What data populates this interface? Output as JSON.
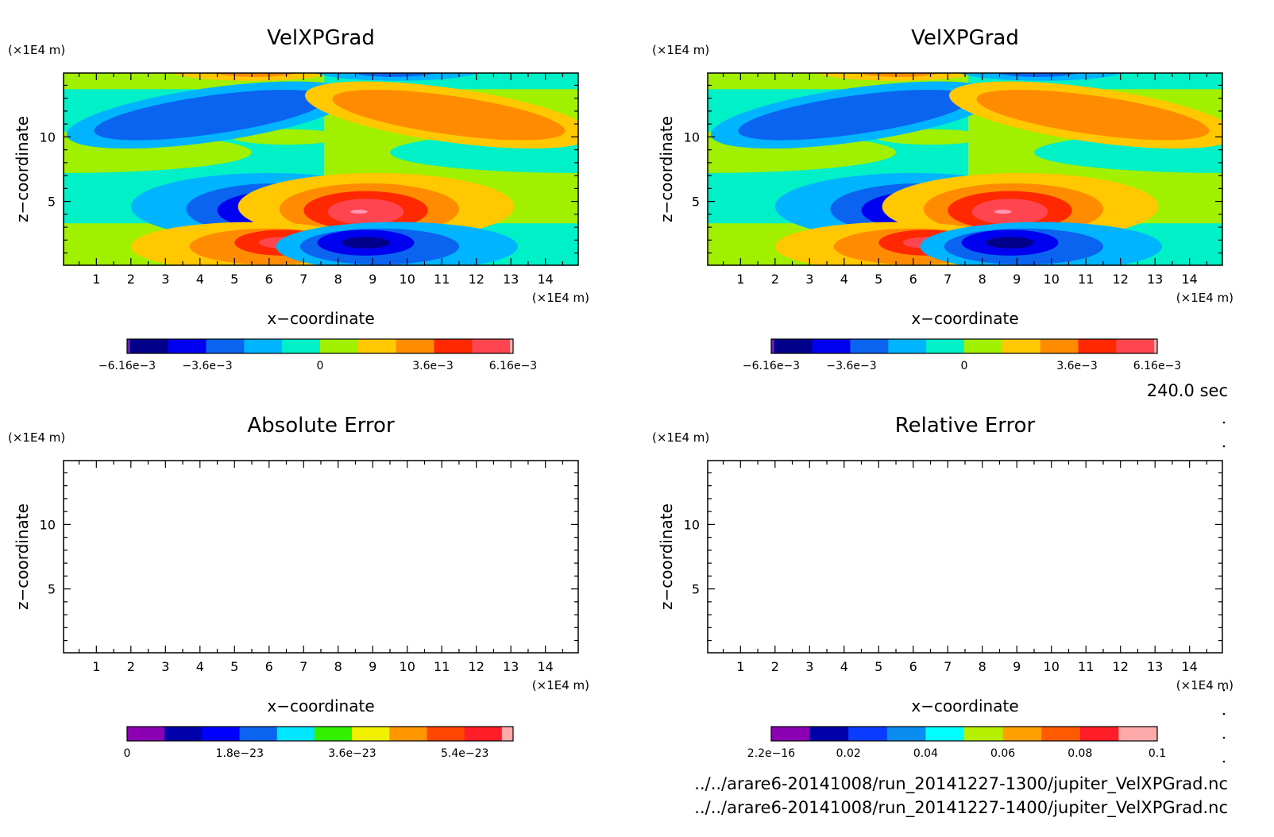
{
  "colors": {
    "neg4": "#00008b",
    "neg3": "#0000f0",
    "neg2": "#0a64f0",
    "neg1": "#00b4ff",
    "zero_neg": "#00f0c8",
    "zero_pos": "#a0f000",
    "pos1": "#ffc800",
    "pos2": "#ff8c00",
    "pos3": "#ff2800",
    "pos4": "#ff4650",
    "peak_pos": "#ff96b4",
    "peak_neg": "#b464dc",
    "frame": "#000000",
    "background": "#ffffff"
  },
  "panels": [
    {
      "title": "VelXPGrad",
      "xlabel": "x−coordinate",
      "ylabel": "z−coordinate",
      "xunit": "(×1E4 m)",
      "yunit": "(×1E4 m)",
      "filled": true
    },
    {
      "title": "VelXPGrad",
      "xlabel": "x−coordinate",
      "ylabel": "z−coordinate",
      "xunit": "(×1E4 m)",
      "yunit": "(×1E4 m)",
      "filled": true
    },
    {
      "title": "Absolute Error",
      "xlabel": "x−coordinate",
      "ylabel": "z−coordinate",
      "xunit": "(×1E4 m)",
      "yunit": "(×1E4 m)",
      "filled": false
    },
    {
      "title": "Relative Error",
      "xlabel": "x−coordinate",
      "ylabel": "z−coordinate",
      "xunit": "(×1E4 m)",
      "yunit": "(×1E4 m)",
      "filled": false
    }
  ],
  "colorbars": [
    {
      "ticks": [
        {
          "label": "−6.16e−3",
          "pos": 0.0
        },
        {
          "label": "−3.6e−3",
          "pos": 0.2078
        },
        {
          "label": "0",
          "pos": 0.5
        },
        {
          "label": "3.6e−3",
          "pos": 0.7922
        },
        {
          "label": "6.16e−3",
          "pos": 1.0
        }
      ],
      "colors": [
        "#6a1fb4",
        "#00008b",
        "#0000f0",
        "#0a64f0",
        "#00b4ff",
        "#00f0c8",
        "#a0f000",
        "#ffc800",
        "#ff8c00",
        "#ff2800",
        "#ff4650",
        "#ffb4b4"
      ],
      "weights": [
        0.08,
        1,
        1,
        1,
        1,
        1,
        1,
        1,
        1,
        1,
        1,
        0.08
      ]
    },
    {
      "ticks": [
        {
          "label": "−6.16e−3",
          "pos": 0.0
        },
        {
          "label": "−3.6e−3",
          "pos": 0.2078
        },
        {
          "label": "0",
          "pos": 0.5
        },
        {
          "label": "3.6e−3",
          "pos": 0.7922
        },
        {
          "label": "6.16e−3",
          "pos": 1.0
        }
      ],
      "colors": [
        "#6a1fb4",
        "#00008b",
        "#0000f0",
        "#0a64f0",
        "#00b4ff",
        "#00f0c8",
        "#a0f000",
        "#ffc800",
        "#ff8c00",
        "#ff2800",
        "#ff4650",
        "#ffb4b4"
      ],
      "weights": [
        0.08,
        1,
        1,
        1,
        1,
        1,
        1,
        1,
        1,
        1,
        1,
        0.08
      ]
    },
    {
      "ticks": [
        {
          "label": "0",
          "pos": 0.0
        },
        {
          "label": "1.8e−23",
          "pos": 0.2917
        },
        {
          "label": "3.6e−23",
          "pos": 0.5833
        },
        {
          "label": "5.4e−23",
          "pos": 0.875
        }
      ],
      "colors": [
        "#8c00b4",
        "#0000aa",
        "#0000ff",
        "#0a64f0",
        "#00e6ff",
        "#32f000",
        "#f0f000",
        "#ff9600",
        "#ff4600",
        "#ff1e28",
        "#ffaaaa"
      ],
      "weights": [
        1,
        1,
        1,
        1,
        1,
        1,
        1,
        1,
        1,
        1,
        0.3
      ]
    },
    {
      "ticks": [
        {
          "label": "2.2e−16",
          "pos": 0.0
        },
        {
          "label": "0.02",
          "pos": 0.2
        },
        {
          "label": "0.04",
          "pos": 0.4
        },
        {
          "label": "0.06",
          "pos": 0.6
        },
        {
          "label": "0.08",
          "pos": 0.8
        },
        {
          "label": "0.1",
          "pos": 1.0
        }
      ],
      "colors": [
        "#8c00b4",
        "#0000aa",
        "#0a3cff",
        "#0a8cf0",
        "#00ffff",
        "#b4f000",
        "#ffa000",
        "#ff5a00",
        "#ff1e28",
        "#ffaaaa"
      ],
      "weights": [
        1,
        1,
        1,
        1,
        1,
        1,
        1,
        1,
        1,
        1
      ]
    }
  ],
  "chart_data": [
    {
      "type": "heatmap",
      "title": "VelXPGrad",
      "xlabel": "x−coordinate",
      "ylabel": "z−coordinate",
      "xunit": "(×1E4 m)",
      "yunit": "(×1E4 m)",
      "xlim": [
        0.05,
        14.95
      ],
      "ylim": [
        0.05,
        14.95
      ],
      "xticks": [
        1,
        2,
        3,
        4,
        5,
        6,
        7,
        8,
        9,
        10,
        11,
        12,
        13,
        14
      ],
      "yticks": [
        5,
        10
      ],
      "color_levels": [
        -0.00616,
        0.00616
      ],
      "features": [
        {
          "sign": -1,
          "level": 4,
          "x": 6.3,
          "z": 4.2,
          "note": "negative core"
        },
        {
          "sign": 1,
          "level": 4,
          "x": 8.6,
          "z": 4.2,
          "note": "positive core"
        },
        {
          "sign": 1,
          "level": 3,
          "x": 6.4,
          "z": 1.8
        },
        {
          "sign": -1,
          "level": 3,
          "x": 8.8,
          "z": 1.8
        },
        {
          "sign": -1,
          "level": 2,
          "x": 4.0,
          "z": 12.0
        },
        {
          "sign": 1,
          "level": 2,
          "x": 11.2,
          "z": 12.0
        }
      ]
    },
    {
      "type": "heatmap",
      "title": "VelXPGrad",
      "xlabel": "x−coordinate",
      "ylabel": "z−coordinate",
      "xunit": "(×1E4 m)",
      "yunit": "(×1E4 m)",
      "xlim": [
        0.05,
        14.95
      ],
      "ylim": [
        0.05,
        14.95
      ],
      "xticks": [
        1,
        2,
        3,
        4,
        5,
        6,
        7,
        8,
        9,
        10,
        11,
        12,
        13,
        14
      ],
      "yticks": [
        5,
        10
      ],
      "color_levels": [
        -0.00616,
        0.00616
      ],
      "features": [
        {
          "sign": -1,
          "level": 4,
          "x": 6.3,
          "z": 4.2
        },
        {
          "sign": 1,
          "level": 4,
          "x": 8.6,
          "z": 4.2
        },
        {
          "sign": 1,
          "level": 3,
          "x": 6.4,
          "z": 1.8
        },
        {
          "sign": -1,
          "level": 3,
          "x": 8.8,
          "z": 1.8
        },
        {
          "sign": -1,
          "level": 2,
          "x": 4.0,
          "z": 12.0
        },
        {
          "sign": 1,
          "level": 2,
          "x": 11.2,
          "z": 12.0
        }
      ]
    },
    {
      "type": "heatmap",
      "title": "Absolute Error",
      "xlabel": "x−coordinate",
      "ylabel": "z−coordinate",
      "xunit": "(×1E4 m)",
      "yunit": "(×1E4 m)",
      "xlim": [
        0.05,
        14.95
      ],
      "ylim": [
        0.05,
        14.95
      ],
      "xticks": [
        1,
        2,
        3,
        4,
        5,
        6,
        7,
        8,
        9,
        10,
        11,
        12,
        13,
        14
      ],
      "yticks": [
        5,
        10
      ],
      "color_levels": [
        0,
        6e-23
      ],
      "values": "blank"
    },
    {
      "type": "heatmap",
      "title": "Relative Error",
      "xlabel": "x−coordinate",
      "ylabel": "z−coordinate",
      "xunit": "(×1E4 m)",
      "yunit": "(×1E4 m)",
      "xlim": [
        0.05,
        14.95
      ],
      "ylim": [
        0.05,
        14.95
      ],
      "xticks": [
        1,
        2,
        3,
        4,
        5,
        6,
        7,
        8,
        9,
        10,
        11,
        12,
        13,
        14
      ],
      "yticks": [
        5,
        10
      ],
      "color_levels": [
        2.2e-16,
        0.1
      ],
      "values": "blank"
    }
  ],
  "time_label": "240.0 sec",
  "footer": {
    "line1": "../../arare6-20141008/run_20141227-1300/jupiter_VelXPGrad.nc",
    "line2": "../../arare6-20141008/run_20141227-1400/jupiter_VelXPGrad.nc"
  }
}
